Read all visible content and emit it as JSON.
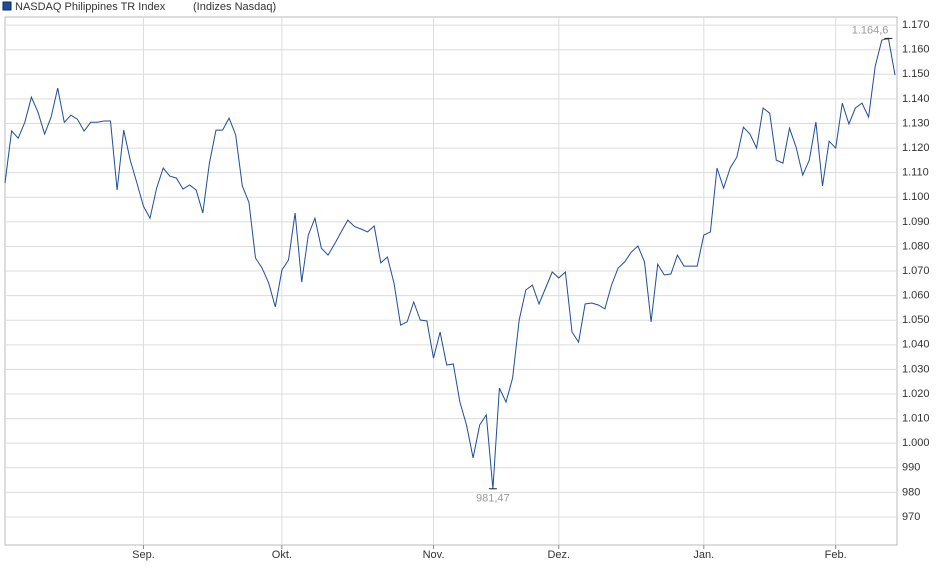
{
  "chart_data": {
    "type": "line",
    "subtitle": "(Indizes Nasdaq)",
    "categories": [
      null,
      null,
      null,
      null,
      null,
      null,
      null,
      null,
      null,
      null,
      null,
      null,
      null,
      null,
      null,
      null,
      null,
      null,
      null,
      null,
      null,
      "Sep.",
      null,
      null,
      null,
      null,
      null,
      null,
      null,
      null,
      null,
      null,
      null,
      null,
      null,
      null,
      null,
      null,
      null,
      null,
      null,
      null,
      "Okt.",
      null,
      null,
      null,
      null,
      null,
      null,
      null,
      null,
      null,
      null,
      null,
      null,
      null,
      null,
      null,
      null,
      null,
      null,
      null,
      null,
      null,
      null,
      "Nov.",
      null,
      null,
      null,
      null,
      null,
      null,
      null,
      null,
      null,
      null,
      null,
      null,
      null,
      null,
      null,
      null,
      null,
      null,
      "Dez.",
      null,
      null,
      null,
      null,
      null,
      null,
      null,
      null,
      null,
      null,
      null,
      null,
      null,
      null,
      null,
      null,
      null,
      null,
      null,
      null,
      null,
      "Jan.",
      null,
      null,
      null,
      null,
      null,
      null,
      null,
      null,
      null,
      null,
      null,
      null,
      null,
      null,
      null,
      null,
      null,
      null,
      null,
      "Feb.",
      null,
      null,
      null,
      null,
      null,
      null,
      null,
      null,
      null
    ],
    "series": [
      {
        "name": "NASDAQ Philippines TR Index",
        "color": "#1f4e99",
        "values": [
          1105.8,
          1127,
          1124,
          1130.5,
          1140.7,
          1134.6,
          1125.7,
          1132.6,
          1144.4,
          1130.5,
          1133.4,
          1131.7,
          1126.9,
          1130.5,
          1130.5,
          1131,
          1131,
          1102.9,
          1127.3,
          1115,
          1105.8,
          1096.4,
          1091.5,
          1103.7,
          1111.9,
          1108.6,
          1107.8,
          1103.3,
          1105,
          1102.9,
          1093.6,
          1113.9,
          1127.3,
          1127.3,
          1132.2,
          1125.3,
          1104.6,
          1098,
          1075.3,
          1071.2,
          1065.1,
          1055.4,
          1070.4,
          1074.5,
          1093.6,
          1065.5,
          1084.6,
          1091.5,
          1079.3,
          1076.5,
          1081,
          1085.9,
          1090.7,
          1088.1,
          1087.1,
          1085.9,
          1088.3,
          1073.3,
          1075.7,
          1065.1,
          1048,
          1049.3,
          1057.4,
          1050.1,
          1049.7,
          1034.6,
          1045.2,
          1031.8,
          1032.2,
          1016.7,
          1007.4,
          994,
          1007.4,
          1011.5,
          981.47,
          1022.4,
          1016.7,
          1026.5,
          1050.1,
          1062.3,
          1064.3,
          1056.6,
          1063.1,
          1069.6,
          1067.2,
          1069.6,
          1045.2,
          1041.1,
          1056.6,
          1057,
          1056.2,
          1054.6,
          1064.3,
          1071.2,
          1073.7,
          1077.7,
          1080.2,
          1073.7,
          1049.3,
          1072.8,
          1068.4,
          1068.8,
          1076.5,
          1072,
          1072,
          1072,
          1084.6,
          1085.9,
          1111.9,
          1103.7,
          1111.9,
          1116.3,
          1128.5,
          1125.7,
          1120,
          1136.3,
          1134.2,
          1115.1,
          1113.9,
          1128.1,
          1120.4,
          1109,
          1115.1,
          1130.6,
          1104.6,
          1122.8,
          1120,
          1138.3,
          1129.8,
          1136.3,
          1138.3,
          1132.6,
          1153.3,
          1163.9,
          1164.6,
          1149.7
        ],
        "value_labels": [
          null,
          null,
          null,
          null,
          null,
          null,
          null,
          null,
          null,
          null,
          null,
          null,
          null,
          null,
          null,
          null,
          null,
          null,
          null,
          null,
          null,
          null,
          null,
          null,
          null,
          null,
          null,
          null,
          null,
          null,
          null,
          null,
          null,
          null,
          null,
          null,
          null,
          null,
          null,
          null,
          null,
          null,
          null,
          null,
          null,
          null,
          null,
          null,
          null,
          null,
          null,
          null,
          null,
          null,
          null,
          null,
          null,
          null,
          null,
          null,
          null,
          null,
          null,
          null,
          null,
          null,
          null,
          null,
          null,
          null,
          null,
          null,
          null,
          null,
          "981,47",
          null,
          null,
          null,
          null,
          null,
          null,
          null,
          null,
          null,
          null,
          null,
          null,
          null,
          null,
          null,
          null,
          null,
          null,
          null,
          null,
          null,
          null,
          null,
          null,
          null,
          null,
          null,
          null,
          null,
          null,
          null,
          null,
          null,
          null,
          null,
          null,
          null,
          null,
          null,
          null,
          null,
          null,
          null,
          null,
          null,
          null,
          null,
          null,
          null,
          null,
          null,
          null,
          null,
          null,
          null,
          null,
          null,
          null,
          null,
          "1.164,6",
          null
        ]
      }
    ],
    "ylim": [
      958.6,
      1173.3
    ],
    "yticks": [
      970,
      980,
      990,
      {
        "value": 1000,
        "label": "1.000"
      },
      {
        "value": 1010,
        "label": "1.010"
      },
      {
        "value": 1020,
        "label": "1.020"
      },
      {
        "value": 1030,
        "label": "1.030"
      },
      {
        "value": 1040,
        "label": "1.040"
      },
      {
        "value": 1050,
        "label": "1.050"
      },
      {
        "value": 1060,
        "label": "1.060"
      },
      {
        "value": 1070,
        "label": "1.070"
      },
      {
        "value": 1080,
        "label": "1.080"
      },
      {
        "value": 1090,
        "label": "1.090"
      },
      {
        "value": 1100,
        "label": "1.100"
      },
      {
        "value": 1110,
        "label": "1.110"
      },
      {
        "value": 1120,
        "label": "1.120"
      },
      {
        "value": 1130,
        "label": "1.130"
      },
      {
        "value": 1140,
        "label": "1.140"
      },
      {
        "value": 1150,
        "label": "1.150"
      },
      {
        "value": 1160,
        "label": "1.160"
      },
      {
        "value": 1170,
        "label": "1.170"
      }
    ],
    "grid": true
  }
}
